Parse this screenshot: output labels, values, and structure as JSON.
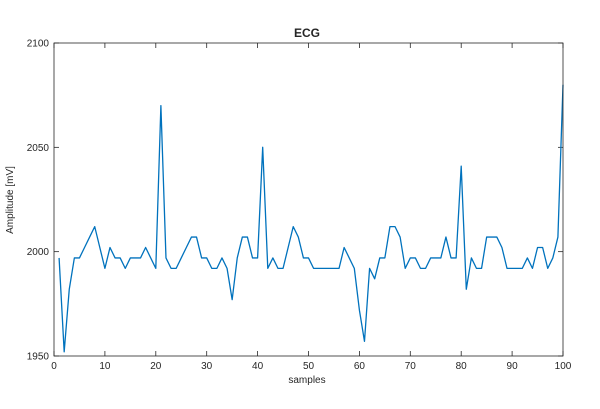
{
  "chart_data": {
    "type": "line",
    "title": "ECG",
    "xlabel": "samples",
    "ylabel": "Amplitude [mV]",
    "xlim": [
      0,
      100
    ],
    "ylim": [
      1950,
      2100
    ],
    "xticks": [
      0,
      10,
      20,
      30,
      40,
      50,
      60,
      70,
      80,
      90,
      100
    ],
    "yticks": [
      1950,
      2000,
      2050,
      2100
    ],
    "grid": false,
    "series_color": "#0072BD",
    "x": [
      1,
      2,
      3,
      4,
      5,
      6,
      7,
      8,
      9,
      10,
      11,
      12,
      13,
      14,
      15,
      16,
      17,
      18,
      19,
      20,
      21,
      22,
      23,
      24,
      25,
      26,
      27,
      28,
      29,
      30,
      31,
      32,
      33,
      34,
      35,
      36,
      37,
      38,
      39,
      40,
      41,
      42,
      43,
      44,
      45,
      46,
      47,
      48,
      49,
      50,
      51,
      52,
      53,
      54,
      55,
      56,
      57,
      58,
      59,
      60,
      61,
      62,
      63,
      64,
      65,
      66,
      67,
      68,
      69,
      70,
      71,
      72,
      73,
      74,
      75,
      76,
      77,
      78,
      79,
      80,
      81,
      82,
      83,
      84,
      85,
      86,
      87,
      88,
      89,
      90,
      91,
      92,
      93,
      94,
      95,
      96,
      97,
      98,
      99,
      100
    ],
    "y": [
      1997,
      1952,
      1982,
      1997,
      1997,
      2002,
      2007,
      2012,
      2002,
      1992,
      2002,
      1997,
      1997,
      1992,
      1997,
      1997,
      1997,
      2002,
      1997,
      1992,
      2070,
      1997,
      1992,
      1992,
      1997,
      2002,
      2007,
      2007,
      1997,
      1997,
      1992,
      1992,
      1997,
      1992,
      1977,
      1997,
      2007,
      2007,
      1997,
      1997,
      2050,
      1992,
      1997,
      1992,
      1992,
      2002,
      2012,
      2007,
      1997,
      1997,
      1992,
      1992,
      1992,
      1992,
      1992,
      1992,
      2002,
      1997,
      1992,
      1972,
      1957,
      1992,
      1987,
      1997,
      1997,
      2012,
      2012,
      2007,
      1992,
      1997,
      1997,
      1992,
      1992,
      1997,
      1997,
      1997,
      2007,
      1997,
      1997,
      2041,
      1982,
      1997,
      1992,
      1992,
      2007,
      2007,
      2007,
      2002,
      1992,
      1992,
      1992,
      1992,
      1997,
      1992,
      2002,
      2002,
      1992,
      1997,
      2007,
      2080
    ]
  }
}
